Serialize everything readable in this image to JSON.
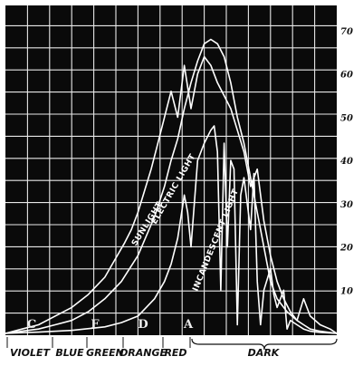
{
  "chart_data": {
    "type": "line",
    "title": "",
    "xlabel": "",
    "ylabel": "",
    "ylim": [
      0,
      70
    ],
    "y_tick_labels": [
      "10",
      "20",
      "30",
      "40",
      "50",
      "60",
      "70"
    ],
    "grid": true,
    "background": "#0a0a0a",
    "line_color": "#ffffff",
    "spectrum_lines": [
      "C",
      "F",
      "D",
      "A"
    ],
    "spectrum_regions": [
      "VIOLET",
      "BLUE",
      "GREEN",
      "ORANGE",
      "RED",
      "DARK"
    ],
    "series": [
      {
        "name": "SUNLIGHT",
        "x": [
          0,
          5,
          10,
          15,
          20,
          25,
          30,
          33,
          36,
          38,
          40,
          42,
          44,
          46,
          48,
          50,
          52,
          54,
          56,
          58,
          60,
          62,
          64,
          66,
          68,
          70,
          72,
          74,
          76,
          78,
          80,
          82,
          84,
          86,
          88,
          90,
          92,
          95,
          100
        ],
        "y": [
          0,
          1,
          2,
          4,
          6,
          9,
          13,
          17,
          21,
          24,
          28,
          33,
          38,
          44,
          50,
          56,
          50,
          62,
          52,
          60,
          64,
          62,
          58,
          55,
          52,
          47,
          42,
          34,
          38,
          26,
          18,
          12,
          8,
          5,
          3,
          2,
          1,
          0.5,
          0
        ]
      },
      {
        "name": "ELECTRIC LIGHT",
        "x": [
          0,
          5,
          10,
          15,
          20,
          25,
          30,
          35,
          40,
          45,
          48,
          50,
          52,
          54,
          56,
          58,
          60,
          62,
          64,
          66,
          68,
          70,
          72,
          74,
          76,
          78,
          80,
          82,
          85,
          88,
          90,
          92,
          95,
          98,
          100
        ],
        "y": [
          0,
          0.5,
          1,
          2,
          3,
          5,
          8,
          12,
          18,
          27,
          34,
          40,
          45,
          52,
          58,
          63,
          67,
          68,
          67,
          64,
          58,
          50,
          44,
          36,
          28,
          20,
          12,
          8,
          5,
          3,
          8,
          4,
          2,
          1,
          0
        ]
      },
      {
        "name": "INCANDESCENT LIGHT",
        "x": [
          0,
          10,
          20,
          30,
          35,
          40,
          45,
          48,
          50,
          52,
          54,
          55,
          56,
          58,
          60,
          62,
          63,
          64,
          65,
          66,
          67,
          68,
          69,
          70,
          71,
          72,
          74,
          75,
          76,
          77,
          78,
          80,
          81,
          82,
          84,
          85,
          86,
          88,
          90,
          92,
          95,
          100
        ],
        "y": [
          0,
          0.3,
          0.7,
          1.5,
          2.5,
          4,
          8,
          12,
          16,
          22,
          32,
          28,
          20,
          40,
          44,
          47,
          48,
          42,
          10,
          44,
          20,
          40,
          38,
          2,
          32,
          36,
          24,
          37,
          12,
          2,
          10,
          15,
          9,
          6,
          10,
          1,
          3,
          2,
          1,
          0.5,
          0.2,
          0
        ]
      }
    ]
  }
}
